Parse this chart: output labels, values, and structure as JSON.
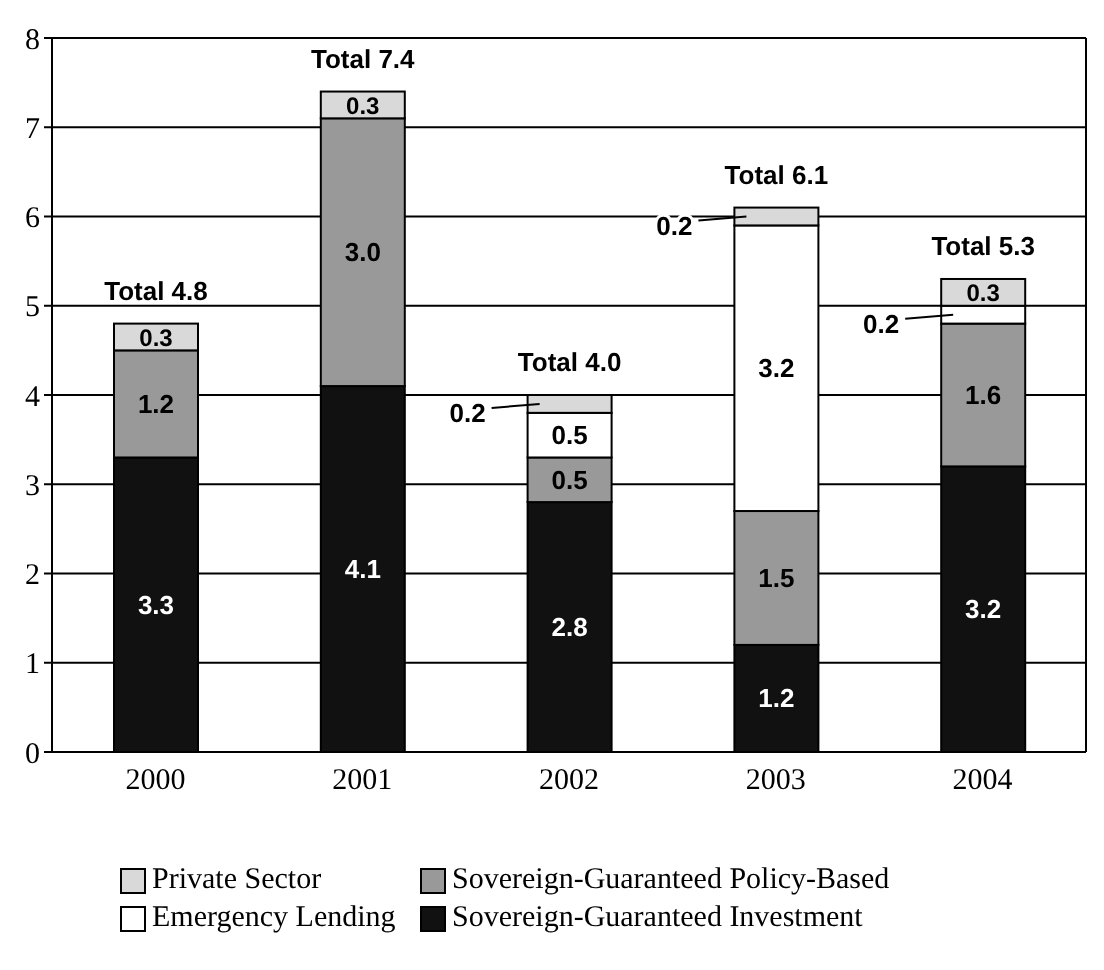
{
  "chart_data": {
    "type": "bar",
    "stacked": true,
    "categories": [
      "2000",
      "2001",
      "2002",
      "2003",
      "2004"
    ],
    "series": [
      {
        "name": "Sovereign-Guaranteed Investment",
        "color": "#111111",
        "values": [
          3.3,
          4.1,
          2.8,
          1.2,
          3.2
        ],
        "value_labels": [
          "3.3",
          "4.1",
          "2.8",
          "1.2",
          "3.2"
        ]
      },
      {
        "name": "Sovereign-Guaranteed Policy-Based",
        "color": "#999999",
        "values": [
          1.2,
          3.0,
          0.5,
          1.5,
          1.6
        ],
        "value_labels": [
          "1.2",
          "3.0",
          "0.5",
          "1.5",
          "1.6"
        ]
      },
      {
        "name": "Emergency Lending",
        "color": "#ffffff",
        "values": [
          0,
          0,
          0.5,
          3.2,
          0.2
        ],
        "value_labels": [
          null,
          null,
          "0.5",
          "3.2",
          "0.2"
        ]
      },
      {
        "name": "Private Sector",
        "color": "#d9d9d9",
        "values": [
          0.3,
          0.3,
          0.2,
          0.2,
          0.3
        ],
        "value_labels": [
          "0.3",
          "0.3",
          "0.2",
          "0.2",
          "0.3"
        ]
      }
    ],
    "totals": [
      "Total 4.8",
      "Total 7.4",
      "Total 4.0",
      "Total 6.1",
      "Total 5.3"
    ],
    "ylim": [
      0,
      8
    ],
    "yticks": [
      0,
      1,
      2,
      3,
      4,
      5,
      6,
      7,
      8
    ],
    "grid": "y",
    "legend": "bottom"
  }
}
